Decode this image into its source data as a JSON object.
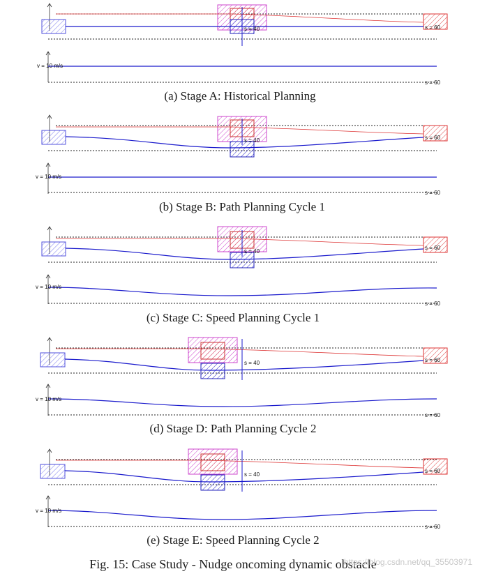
{
  "figure": {
    "caption": "Fig. 15: Case Study - Nudge oncoming dynamic obstacle",
    "watermark": "https://blog.csdn.net/qq_35503971",
    "colors": {
      "ego": "#3333cc",
      "obstacle": "#cc33cc",
      "target": "#dd3333",
      "path": "#1a1acc",
      "reference": "#dd3333"
    },
    "panels": [
      {
        "caption": "(a) Stage A: Historical Planning",
        "s_label": "s = 40",
        "end_label": "s = 60",
        "v_label": "v = 10 m/s",
        "v_end_label": "s = 60"
      },
      {
        "caption": "(b) Stage B: Path Planning Cycle 1",
        "s_label": "s = 40",
        "end_label": "s = 60",
        "v_label": "v = 10 m/s",
        "v_end_label": "s = 60"
      },
      {
        "caption": "(c) Stage C: Speed Planning Cycle 1",
        "s_label": "s = 40",
        "end_label": "s = 60",
        "v_label": "v = 10 m/s",
        "v_end_label": "s = 60"
      },
      {
        "caption": "(d) Stage D: Path Planning Cycle 2",
        "s_label": "s = 40",
        "end_label": "s = 60",
        "v_label": "v = 10 m/s",
        "v_end_label": "s = 60"
      },
      {
        "caption": "(e) Stage E: Speed Planning Cycle 2",
        "s_label": "s = 40",
        "end_label": "s = 60",
        "v_label": "v = 10 m/s",
        "v_end_label": "s = 60"
      }
    ]
  }
}
